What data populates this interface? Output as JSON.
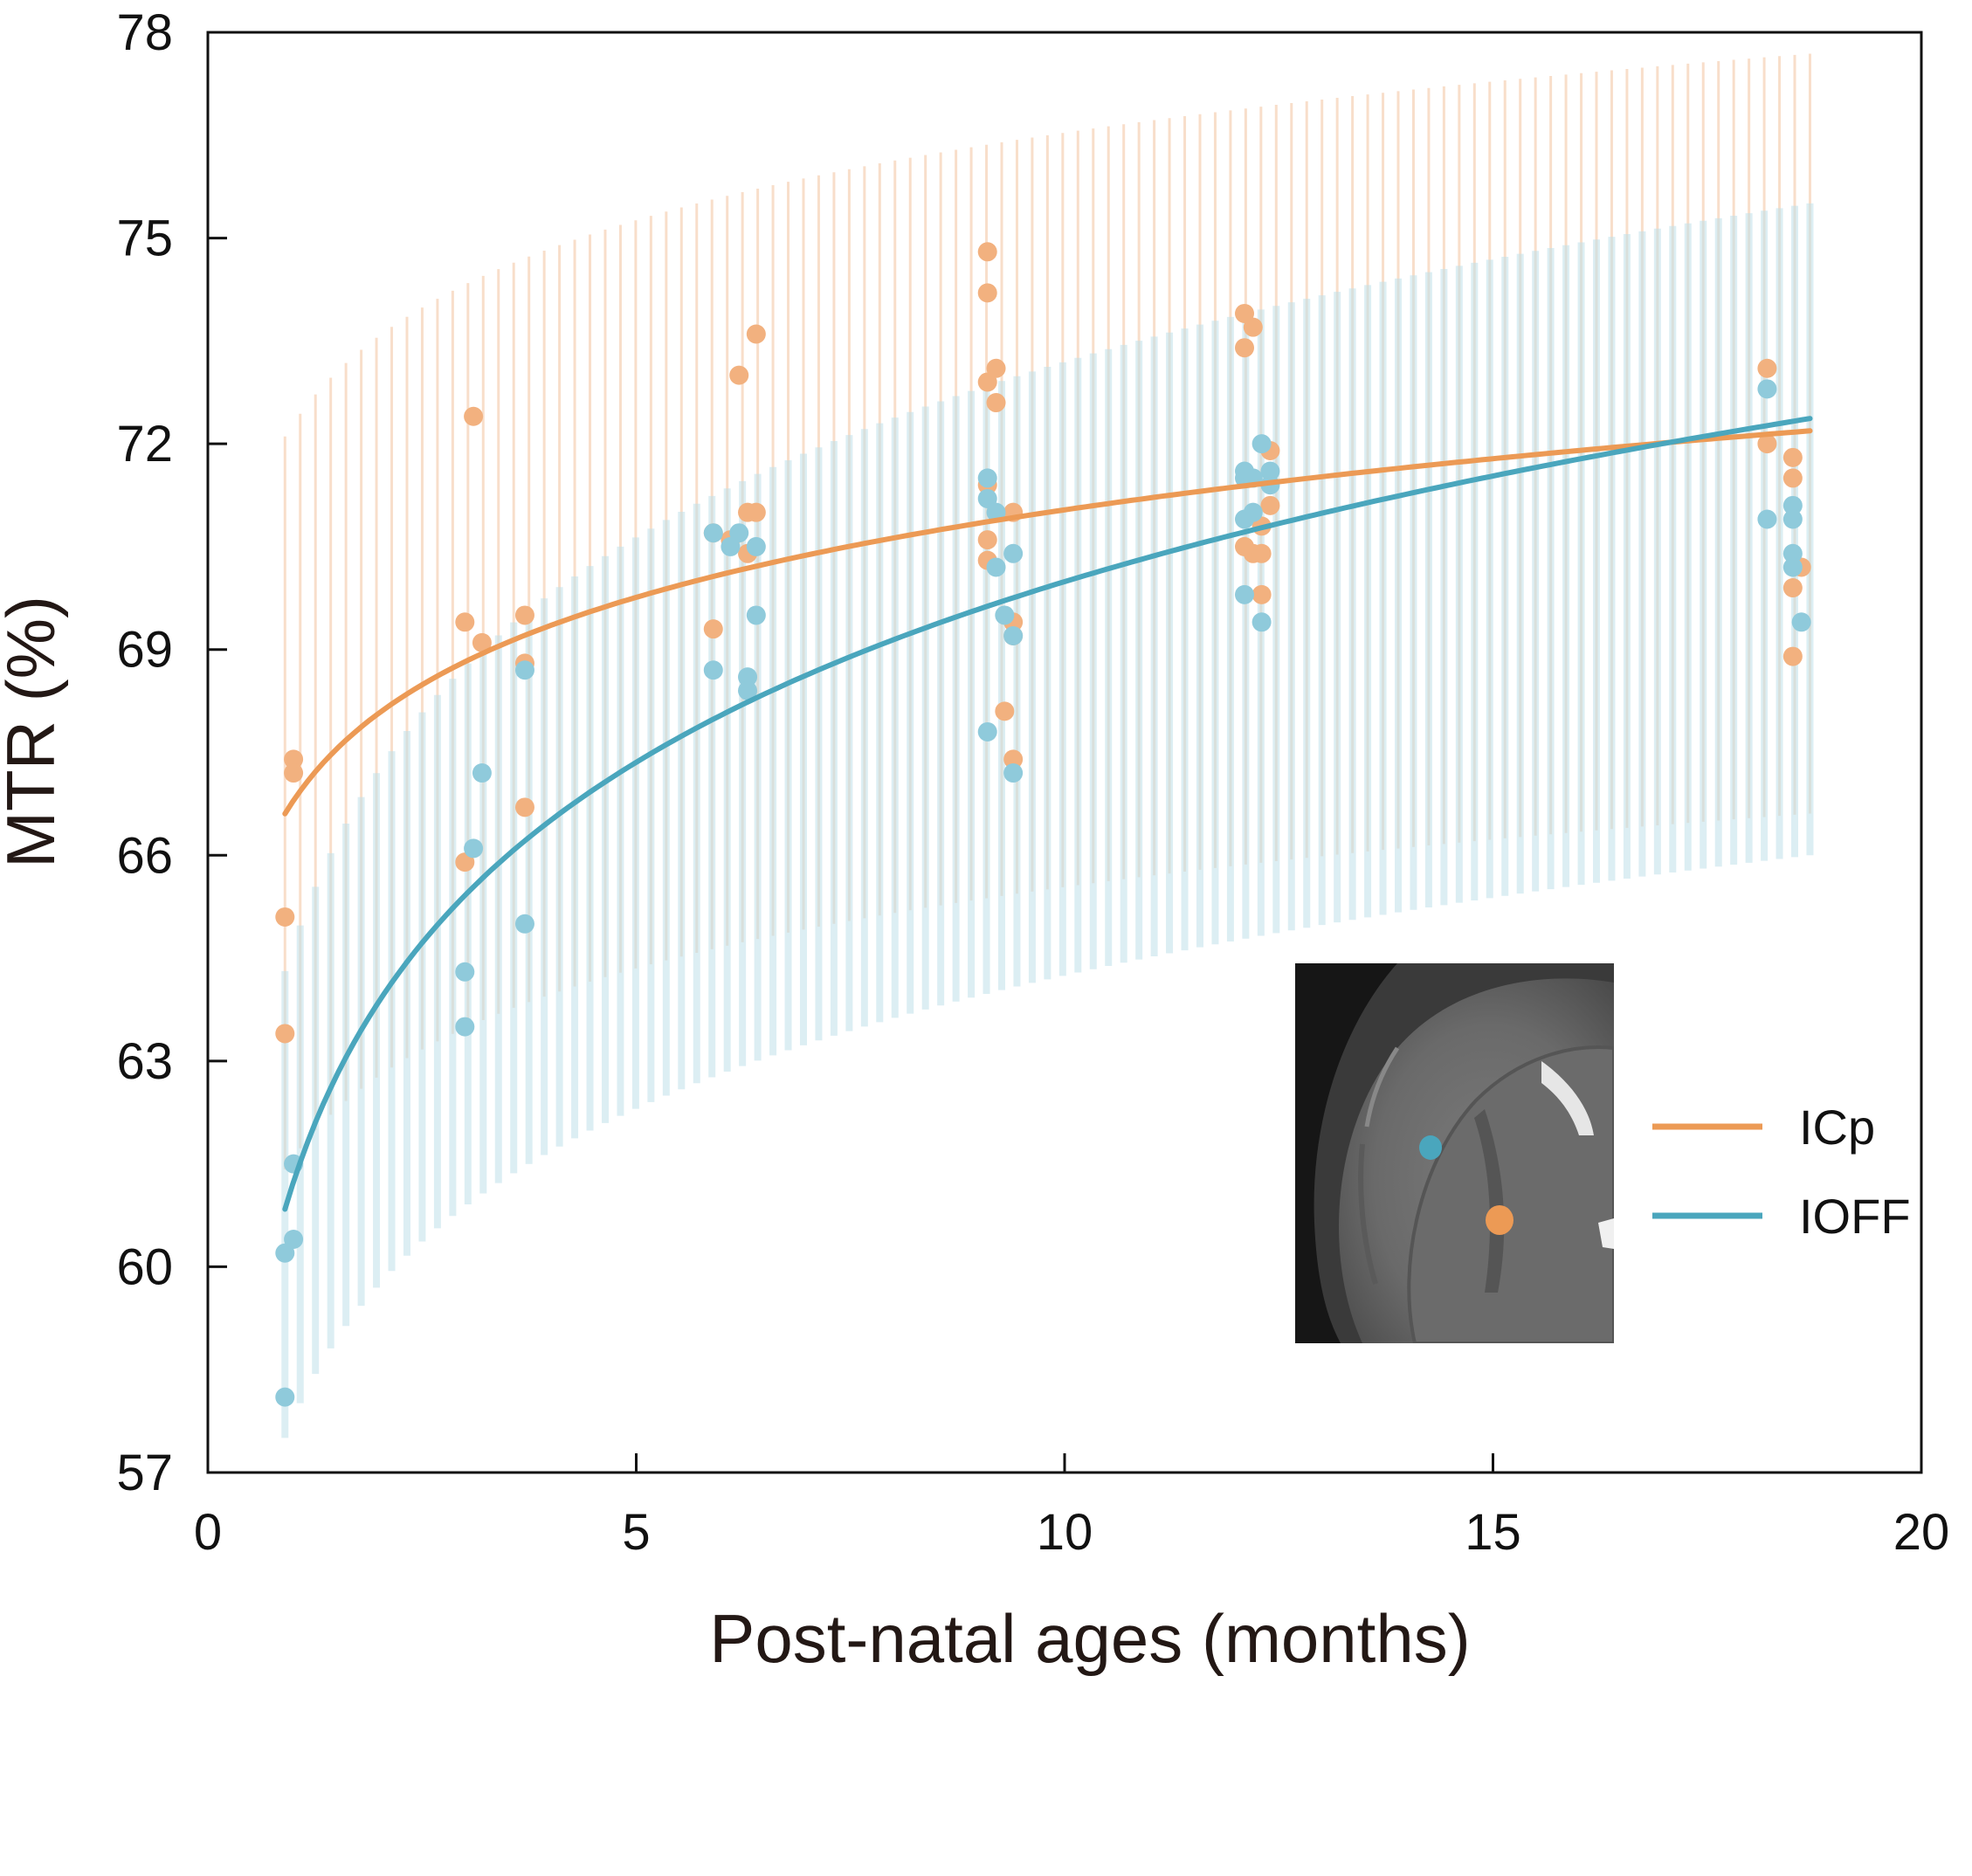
{
  "colors": {
    "icp": "#ec9a55",
    "icp_point": "#f2b17f",
    "icp_band": "#f6d3b8",
    "ioff": "#4aa6bd",
    "ioff_point": "#8fcadb",
    "ioff_band": "#bfe0ea",
    "axis": "#111111"
  },
  "chart_data": {
    "type": "scatter",
    "title": "",
    "xlabel": "Post-natal ages (months)",
    "ylabel": "MTR (%)",
    "xlim": [
      0,
      20
    ],
    "ylim": [
      57,
      78
    ],
    "x_ticks": [
      "0",
      "5",
      "10",
      "15",
      "20"
    ],
    "y_ticks": [
      "57",
      "60",
      "63",
      "66",
      "69",
      "72",
      "75",
      "78"
    ],
    "grid": false,
    "legend": {
      "position": "lower-right",
      "entries": [
        "ICp",
        "IOFF"
      ]
    },
    "inset": {
      "type": "MRI brain slice",
      "position": "lower-right",
      "markers": [
        "IOFF",
        "ICp"
      ]
    },
    "series": [
      {
        "name": "ICp",
        "fit": {
          "model": "a + b*ln(x)",
          "a": 66.8,
          "b": 1.84,
          "x_range": [
            0.9,
            18.7
          ]
        },
        "band": {
          "lower": {
            "a": 61.6,
            "b": 1.71
          },
          "upper": {
            "a": 72.3,
            "b": 1.84
          }
        },
        "points": [
          {
            "x": 0.9,
            "y": 65.1
          },
          {
            "x": 0.9,
            "y": 63.4
          },
          {
            "x": 1.0,
            "y": 67.4
          },
          {
            "x": 1.0,
            "y": 67.2
          },
          {
            "x": 3.0,
            "y": 69.4
          },
          {
            "x": 3.1,
            "y": 72.4
          },
          {
            "x": 3.2,
            "y": 69.1
          },
          {
            "x": 3.0,
            "y": 65.9
          },
          {
            "x": 3.7,
            "y": 69.5
          },
          {
            "x": 3.7,
            "y": 68.8
          },
          {
            "x": 3.7,
            "y": 66.7
          },
          {
            "x": 5.9,
            "y": 70.7
          },
          {
            "x": 5.9,
            "y": 69.3
          },
          {
            "x": 6.1,
            "y": 70.6
          },
          {
            "x": 6.2,
            "y": 73.0
          },
          {
            "x": 6.3,
            "y": 71.0
          },
          {
            "x": 6.3,
            "y": 70.4
          },
          {
            "x": 6.4,
            "y": 73.6
          },
          {
            "x": 6.4,
            "y": 71.0
          },
          {
            "x": 9.1,
            "y": 74.8
          },
          {
            "x": 9.1,
            "y": 74.2
          },
          {
            "x": 9.1,
            "y": 72.9
          },
          {
            "x": 9.1,
            "y": 71.4
          },
          {
            "x": 9.1,
            "y": 70.6
          },
          {
            "x": 9.1,
            "y": 70.3
          },
          {
            "x": 9.2,
            "y": 72.6
          },
          {
            "x": 9.2,
            "y": 73.1
          },
          {
            "x": 9.3,
            "y": 68.1
          },
          {
            "x": 9.4,
            "y": 71.0
          },
          {
            "x": 9.4,
            "y": 69.4
          },
          {
            "x": 9.4,
            "y": 69.2
          },
          {
            "x": 9.4,
            "y": 67.4
          },
          {
            "x": 12.1,
            "y": 73.9
          },
          {
            "x": 12.1,
            "y": 73.4
          },
          {
            "x": 12.2,
            "y": 73.7
          },
          {
            "x": 12.1,
            "y": 70.5
          },
          {
            "x": 12.2,
            "y": 70.4
          },
          {
            "x": 12.3,
            "y": 70.8
          },
          {
            "x": 12.3,
            "y": 70.4
          },
          {
            "x": 12.3,
            "y": 69.8
          },
          {
            "x": 12.4,
            "y": 71.9
          },
          {
            "x": 12.4,
            "y": 71.1
          },
          {
            "x": 18.2,
            "y": 73.1
          },
          {
            "x": 18.2,
            "y": 72.0
          },
          {
            "x": 18.5,
            "y": 71.8
          },
          {
            "x": 18.5,
            "y": 71.5
          },
          {
            "x": 18.5,
            "y": 69.9
          },
          {
            "x": 18.6,
            "y": 70.2
          },
          {
            "x": 18.5,
            "y": 68.9
          }
        ]
      },
      {
        "name": "IOFF",
        "fit": {
          "model": "a + b*ln(x)",
          "a": 61.24,
          "b": 3.8,
          "x_range": [
            0.9,
            18.7
          ]
        },
        "band": {
          "lower": {
            "a": 57.8,
            "b": 2.8
          },
          "upper": {
            "a": 64.7,
            "b": 3.69
          }
        },
        "points": [
          {
            "x": 0.9,
            "y": 60.2
          },
          {
            "x": 0.9,
            "y": 58.1
          },
          {
            "x": 1.0,
            "y": 61.5
          },
          {
            "x": 1.0,
            "y": 60.4
          },
          {
            "x": 3.0,
            "y": 64.3
          },
          {
            "x": 3.0,
            "y": 63.5
          },
          {
            "x": 3.1,
            "y": 66.1
          },
          {
            "x": 3.2,
            "y": 67.2
          },
          {
            "x": 3.7,
            "y": 68.7
          },
          {
            "x": 3.7,
            "y": 65.0
          },
          {
            "x": 5.9,
            "y": 70.7
          },
          {
            "x": 5.9,
            "y": 68.7
          },
          {
            "x": 6.1,
            "y": 70.5
          },
          {
            "x": 6.2,
            "y": 70.7
          },
          {
            "x": 6.3,
            "y": 68.6
          },
          {
            "x": 6.3,
            "y": 68.4
          },
          {
            "x": 6.4,
            "y": 70.5
          },
          {
            "x": 6.4,
            "y": 69.5
          },
          {
            "x": 9.1,
            "y": 71.5
          },
          {
            "x": 9.1,
            "y": 71.2
          },
          {
            "x": 9.1,
            "y": 67.8
          },
          {
            "x": 9.2,
            "y": 71.0
          },
          {
            "x": 9.2,
            "y": 70.2
          },
          {
            "x": 9.3,
            "y": 69.5
          },
          {
            "x": 9.4,
            "y": 70.4
          },
          {
            "x": 9.4,
            "y": 69.2
          },
          {
            "x": 9.4,
            "y": 67.2
          },
          {
            "x": 12.1,
            "y": 71.6
          },
          {
            "x": 12.1,
            "y": 71.5
          },
          {
            "x": 12.1,
            "y": 70.9
          },
          {
            "x": 12.2,
            "y": 71.0
          },
          {
            "x": 12.2,
            "y": 71.5
          },
          {
            "x": 12.1,
            "y": 69.8
          },
          {
            "x": 12.3,
            "y": 72.0
          },
          {
            "x": 12.3,
            "y": 69.4
          },
          {
            "x": 12.4,
            "y": 71.6
          },
          {
            "x": 12.4,
            "y": 71.4
          },
          {
            "x": 18.2,
            "y": 72.8
          },
          {
            "x": 18.2,
            "y": 70.9
          },
          {
            "x": 18.5,
            "y": 71.1
          },
          {
            "x": 18.5,
            "y": 70.9
          },
          {
            "x": 18.5,
            "y": 70.4
          },
          {
            "x": 18.5,
            "y": 70.2
          },
          {
            "x": 18.6,
            "y": 69.4
          }
        ]
      }
    ]
  }
}
